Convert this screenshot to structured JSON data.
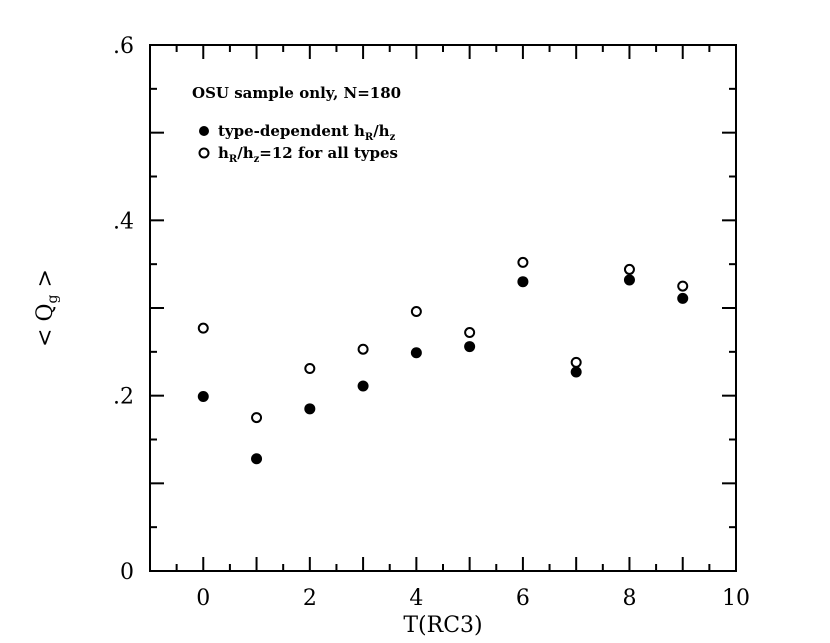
{
  "chart_data": {
    "type": "scatter",
    "title": "",
    "subtitle": "OSU sample only, N=180",
    "xlabel": "T(RC3)",
    "ylabel": "< Q_g >",
    "ylabel_main": "< Q",
    "ylabel_sub": "g",
    "ylabel_close": " >",
    "xlim": [
      -1,
      10
    ],
    "ylim": [
      0,
      0.6
    ],
    "xticks": [
      0,
      2,
      4,
      6,
      8,
      10
    ],
    "xtick_labels": [
      "0",
      "2",
      "4",
      "6",
      "8",
      "10"
    ],
    "yticks": [
      0,
      0.2,
      0.4,
      0.6
    ],
    "ytick_labels": [
      "0",
      ".2",
      ".4",
      ".6"
    ],
    "grid": false,
    "legend_position": "top-left",
    "legend": [
      {
        "marker": "filled-circle",
        "label_main": "type-dependent h",
        "label_sub1": "R",
        "label_mid": "/h",
        "label_sub2": "z"
      },
      {
        "marker": "open-circle",
        "label_main": "h",
        "label_sub1": "R",
        "label_mid": "/h",
        "label_sub2": "z",
        "label_end": "=12 for all types"
      }
    ],
    "series": [
      {
        "marker": "filled",
        "x": [
          0,
          1,
          2,
          3,
          4,
          5,
          6,
          7,
          8,
          9
        ],
        "y": [
          0.199,
          0.128,
          0.185,
          0.211,
          0.249,
          0.256,
          0.33,
          0.227,
          0.332,
          0.311
        ]
      },
      {
        "marker": "open",
        "x": [
          0,
          1,
          2,
          3,
          4,
          5,
          6,
          7,
          8,
          9
        ],
        "y": [
          0.277,
          0.175,
          0.231,
          0.253,
          0.296,
          0.272,
          0.352,
          0.238,
          0.344,
          0.325
        ]
      }
    ]
  }
}
